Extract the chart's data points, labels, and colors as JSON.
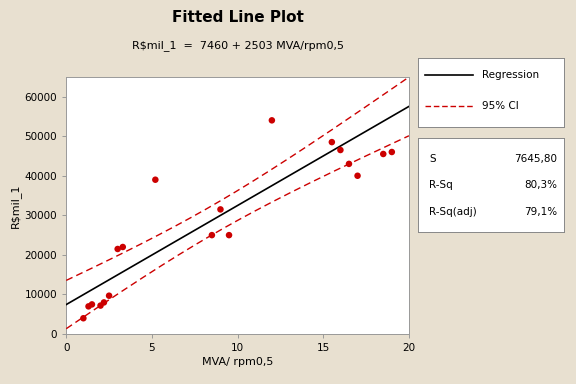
{
  "title": "Fitted Line Plot",
  "subtitle": "R$mil_1  =  7460 + 2503 MVA/rpm0,5",
  "xlabel": "MVA/ rpm0,5",
  "ylabel": "R$mil_1",
  "background_color": "#e8e0d0",
  "plot_bg_color": "#ffffff",
  "xlim": [
    0,
    20
  ],
  "ylim": [
    0,
    65000
  ],
  "xticks": [
    0,
    5,
    10,
    15,
    20
  ],
  "yticks": [
    0,
    10000,
    20000,
    30000,
    40000,
    50000,
    60000
  ],
  "intercept": 7460,
  "slope": 2503,
  "scatter_x": [
    1.0,
    1.3,
    1.5,
    2.0,
    2.2,
    2.5,
    3.0,
    3.3,
    5.2,
    8.5,
    9.0,
    9.5,
    12.0,
    15.5,
    16.0,
    16.5,
    17.0,
    18.5,
    19.0
  ],
  "scatter_y": [
    4000,
    7000,
    7500,
    7200,
    8000,
    9700,
    21500,
    22000,
    39000,
    25000,
    31500,
    25000,
    54000,
    48500,
    46500,
    43000,
    40000,
    45500,
    46000
  ],
  "scatter_color": "#cc0000",
  "scatter_size": 22,
  "regression_color": "#000000",
  "ci_color": "#cc0000",
  "S": "7645,80",
  "R_sq": "80,3%",
  "R_sq_adj": "79,1%",
  "title_fontsize": 11,
  "subtitle_fontsize": 8,
  "axis_label_fontsize": 8,
  "tick_fontsize": 7.5,
  "legend_fontsize": 7.5,
  "stats_fontsize": 7.5
}
